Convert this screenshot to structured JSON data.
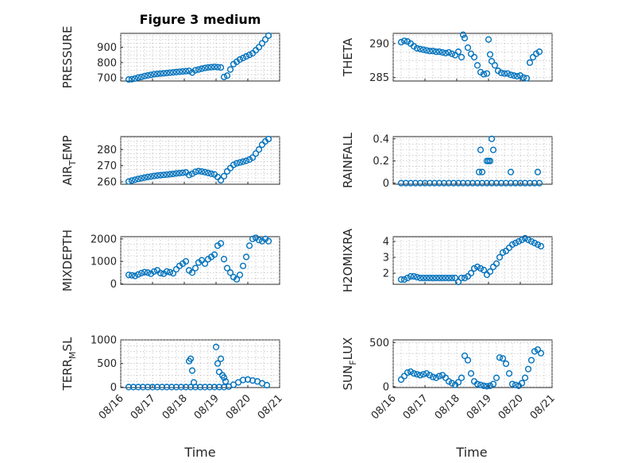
{
  "figure": {
    "title": "Figure 3 medium",
    "xlabel": "Time",
    "x_tick_labels": [
      "08/16",
      "08/17",
      "08/18",
      "08/19",
      "08/20",
      "08/21"
    ],
    "marker_color": "#0072bd"
  },
  "chart_data": [
    {
      "type": "scatter",
      "ylabel": "PRESSURE",
      "yticks": [
        700,
        800,
        900
      ],
      "ylim": [
        680,
        990
      ],
      "xlim": [
        0,
        5
      ],
      "grid": true,
      "series": [
        {
          "x": [
            0.25,
            0.35,
            0.45,
            0.55,
            0.65,
            0.75,
            0.85,
            0.95,
            1.05,
            1.15,
            1.25,
            1.35,
            1.45,
            1.55,
            1.65,
            1.75,
            1.85,
            1.95,
            2.05,
            2.15,
            2.25,
            2.35,
            2.45,
            2.55,
            2.65,
            2.75,
            2.85,
            2.95,
            3.05,
            3.15,
            3.25,
            3.35,
            3.45,
            3.55,
            3.65,
            3.75,
            3.85,
            3.95,
            4.05,
            4.15,
            4.25,
            4.35,
            4.45,
            4.55,
            4.65
          ],
          "y": [
            690,
            692,
            696,
            702,
            706,
            712,
            716,
            720,
            724,
            726,
            728,
            730,
            732,
            734,
            736,
            738,
            740,
            742,
            744,
            746,
            735,
            750,
            755,
            760,
            765,
            768,
            770,
            772,
            770,
            768,
            706,
            715,
            755,
            790,
            805,
            820,
            830,
            840,
            850,
            860,
            880,
            900,
            925,
            950,
            975
          ]
        }
      ]
    },
    {
      "type": "scatter",
      "ylabel": "THETA",
      "yticks": [
        285,
        290
      ],
      "ylim": [
        284.5,
        291.5
      ],
      "xlim": [
        0,
        5
      ],
      "grid": true,
      "series": [
        {
          "x": [
            0.25,
            0.35,
            0.45,
            0.55,
            0.65,
            0.75,
            0.85,
            0.95,
            1.05,
            1.15,
            1.25,
            1.35,
            1.45,
            1.55,
            1.65,
            1.75,
            1.85,
            1.95,
            2.05,
            2.15,
            2.2,
            2.25,
            2.35,
            2.45,
            2.55,
            2.65,
            2.75,
            2.85,
            2.95,
            3.0,
            3.05,
            3.1,
            3.2,
            3.3,
            3.4,
            3.5,
            3.6,
            3.7,
            3.8,
            3.9,
            4.0,
            4.1,
            4.2,
            4.3,
            4.4,
            4.5,
            4.6
          ],
          "y": [
            290.2,
            290.4,
            290.3,
            290.0,
            289.6,
            289.3,
            289.2,
            289.1,
            289.0,
            288.9,
            288.9,
            288.8,
            288.8,
            288.7,
            288.6,
            288.7,
            288.5,
            288.3,
            288.8,
            288.0,
            291.3,
            290.8,
            289.4,
            288.5,
            288.0,
            286.8,
            285.8,
            285.5,
            285.6,
            290.6,
            288.4,
            287.4,
            286.8,
            286.0,
            285.7,
            285.6,
            285.6,
            285.4,
            285.3,
            285.2,
            285.3,
            285.0,
            284.9,
            287.2,
            288.0,
            288.5,
            288.8
          ]
        }
      ]
    },
    {
      "type": "scatter",
      "ylabel_parts": [
        "AIR",
        "T",
        "EMP"
      ],
      "yticks": [
        260,
        270,
        280
      ],
      "ylim": [
        258.5,
        288
      ],
      "xlim": [
        0,
        5
      ],
      "grid": true,
      "series": [
        {
          "x": [
            0.25,
            0.35,
            0.45,
            0.55,
            0.65,
            0.75,
            0.85,
            0.95,
            1.05,
            1.15,
            1.25,
            1.35,
            1.45,
            1.55,
            1.65,
            1.75,
            1.85,
            1.95,
            2.05,
            2.15,
            2.25,
            2.35,
            2.45,
            2.55,
            2.65,
            2.75,
            2.85,
            2.95,
            3.05,
            3.15,
            3.25,
            3.35,
            3.45,
            3.55,
            3.65,
            3.75,
            3.85,
            3.95,
            4.05,
            4.15,
            4.25,
            4.35,
            4.45,
            4.55,
            4.65
          ],
          "y": [
            260.2,
            260.8,
            261.3,
            261.8,
            262.2,
            262.6,
            263.0,
            263.3,
            263.6,
            263.9,
            264.1,
            264.3,
            264.5,
            264.7,
            264.9,
            265.2,
            265.4,
            265.6,
            265.8,
            264.2,
            265.0,
            266.2,
            266.6,
            266.4,
            266.0,
            265.5,
            265.0,
            264.6,
            263.0,
            261.0,
            263.5,
            266.5,
            268.5,
            270.5,
            271.5,
            272.0,
            272.5,
            273.0,
            273.8,
            275.0,
            277.5,
            280.0,
            283.0,
            285.0,
            286.5
          ]
        }
      ]
    },
    {
      "type": "scatter",
      "ylabel": "RAINFALL",
      "yticks": [
        0,
        0.2,
        0.4
      ],
      "ylim": [
        -0.01,
        0.42
      ],
      "xlim": [
        0,
        5
      ],
      "grid": true,
      "series": [
        {
          "x": [
            0.25,
            0.4,
            0.55,
            0.7,
            0.85,
            1.0,
            1.15,
            1.3,
            1.45,
            1.6,
            1.75,
            1.9,
            2.05,
            2.2,
            2.35,
            2.5,
            2.65,
            2.8,
            2.95,
            3.1,
            3.25,
            3.4,
            3.55,
            3.7,
            3.85,
            4.0,
            4.15,
            4.3,
            4.45,
            4.6,
            2.7,
            2.75,
            2.95,
            3.0,
            3.05,
            3.1,
            3.15,
            2.8,
            3.7,
            4.55
          ],
          "y": [
            0,
            0,
            0,
            0,
            0,
            0,
            0,
            0,
            0,
            0,
            0,
            0,
            0,
            0,
            0,
            0,
            0,
            0,
            0,
            0,
            0,
            0,
            0,
            0,
            0,
            0,
            0,
            0,
            0,
            0,
            0.1,
            0.3,
            0.2,
            0.2,
            0.2,
            0.4,
            0.3,
            0.1,
            0.1,
            0.1
          ]
        }
      ]
    },
    {
      "type": "scatter",
      "ylabel": "MIXDEPTH",
      "yticks": [
        0,
        1000,
        2000
      ],
      "ylim": [
        -20,
        2100
      ],
      "xlim": [
        0,
        5
      ],
      "grid": true,
      "series": [
        {
          "x": [
            0.25,
            0.35,
            0.45,
            0.55,
            0.65,
            0.75,
            0.85,
            0.95,
            1.05,
            1.15,
            1.25,
            1.35,
            1.45,
            1.55,
            1.65,
            1.75,
            1.85,
            1.95,
            2.05,
            2.15,
            2.25,
            2.35,
            2.45,
            2.55,
            2.65,
            2.75,
            2.85,
            2.95,
            3.05,
            3.15,
            3.25,
            3.35,
            3.45,
            3.55,
            3.65,
            3.75,
            3.85,
            3.95,
            4.05,
            4.15,
            4.25,
            4.35,
            4.45,
            4.55,
            4.65
          ],
          "y": [
            400,
            380,
            350,
            420,
            480,
            520,
            500,
            450,
            550,
            600,
            480,
            450,
            550,
            520,
            470,
            650,
            800,
            900,
            1000,
            600,
            500,
            700,
            950,
            1050,
            900,
            1100,
            1200,
            1300,
            1700,
            1800,
            1100,
            700,
            500,
            300,
            200,
            400,
            800,
            1200,
            1700,
            2000,
            2050,
            1950,
            1900,
            2000,
            1900
          ]
        }
      ]
    },
    {
      "type": "scatter",
      "ylabel": "H2OMIXRA",
      "yticks": [
        2,
        3,
        4
      ],
      "ylim": [
        1.3,
        4.3
      ],
      "xlim": [
        0,
        5
      ],
      "grid": true,
      "series": [
        {
          "x": [
            0.25,
            0.35,
            0.45,
            0.55,
            0.65,
            0.75,
            0.85,
            0.95,
            1.05,
            1.15,
            1.25,
            1.35,
            1.45,
            1.55,
            1.65,
            1.75,
            1.85,
            1.95,
            2.05,
            2.15,
            2.25,
            2.35,
            2.45,
            2.55,
            2.65,
            2.75,
            2.85,
            2.95,
            3.05,
            3.15,
            3.25,
            3.35,
            3.45,
            3.55,
            3.65,
            3.75,
            3.85,
            3.95,
            4.05,
            4.15,
            4.25,
            4.35,
            4.45,
            4.55,
            4.65
          ],
          "y": [
            1.6,
            1.6,
            1.7,
            1.8,
            1.8,
            1.75,
            1.7,
            1.7,
            1.7,
            1.7,
            1.7,
            1.7,
            1.7,
            1.7,
            1.7,
            1.7,
            1.7,
            1.7,
            1.45,
            1.7,
            1.7,
            1.8,
            2.0,
            2.3,
            2.4,
            2.3,
            2.2,
            1.9,
            2.1,
            2.4,
            2.6,
            3.0,
            3.3,
            3.4,
            3.6,
            3.8,
            3.9,
            4.0,
            4.1,
            4.2,
            4.1,
            4.0,
            3.9,
            3.8,
            3.7
          ]
        }
      ]
    },
    {
      "type": "scatter",
      "ylabel_parts": [
        "TERR",
        "M",
        "SL"
      ],
      "yticks": [
        0,
        500,
        1000
      ],
      "ylim": [
        -10,
        1000
      ],
      "xlim": [
        0,
        5
      ],
      "grid": true,
      "series": [
        {
          "x": [
            0.25,
            0.4,
            0.55,
            0.7,
            0.85,
            1.0,
            1.15,
            1.3,
            1.45,
            1.6,
            1.75,
            1.9,
            2.05,
            2.2,
            2.35,
            2.5,
            2.65,
            2.8,
            2.95,
            3.1,
            3.25,
            3.4,
            3.55,
            3.7,
            3.85,
            4.0,
            4.15,
            4.3,
            4.45,
            4.6,
            2.15,
            2.2,
            2.25,
            2.3,
            3.0,
            3.05,
            3.1,
            3.15,
            3.2,
            3.25,
            3.3
          ],
          "y": [
            0,
            0,
            0,
            0,
            0,
            0,
            0,
            0,
            0,
            0,
            0,
            0,
            0,
            0,
            0,
            0,
            0,
            0,
            0,
            0,
            0,
            10,
            50,
            100,
            150,
            160,
            140,
            120,
            80,
            40,
            550,
            600,
            350,
            100,
            850,
            500,
            320,
            600,
            250,
            200,
            120
          ]
        }
      ]
    },
    {
      "type": "scatter",
      "ylabel_parts": [
        "SUN",
        "F",
        "LUX"
      ],
      "yticks": [
        0,
        500
      ],
      "ylim": [
        -10,
        530
      ],
      "xlim": [
        0,
        5
      ],
      "grid": true,
      "series": [
        {
          "x": [
            0.25,
            0.35,
            0.45,
            0.55,
            0.65,
            0.75,
            0.85,
            0.95,
            1.05,
            1.15,
            1.25,
            1.35,
            1.45,
            1.55,
            1.65,
            1.75,
            1.85,
            1.95,
            2.05,
            2.15,
            2.25,
            2.35,
            2.45,
            2.55,
            2.65,
            2.75,
            2.85,
            2.95,
            3.05,
            3.15,
            3.25,
            3.35,
            3.45,
            3.55,
            3.65,
            3.75,
            3.85,
            3.95,
            4.05,
            4.15,
            4.25,
            4.35,
            4.45,
            4.55,
            4.65
          ],
          "y": [
            80,
            120,
            160,
            170,
            150,
            140,
            130,
            140,
            150,
            130,
            110,
            100,
            120,
            130,
            100,
            60,
            40,
            20,
            50,
            100,
            350,
            300,
            150,
            60,
            30,
            20,
            10,
            5,
            10,
            30,
            100,
            330,
            320,
            260,
            150,
            30,
            20,
            10,
            40,
            100,
            200,
            300,
            400,
            420,
            380
          ]
        }
      ]
    }
  ]
}
